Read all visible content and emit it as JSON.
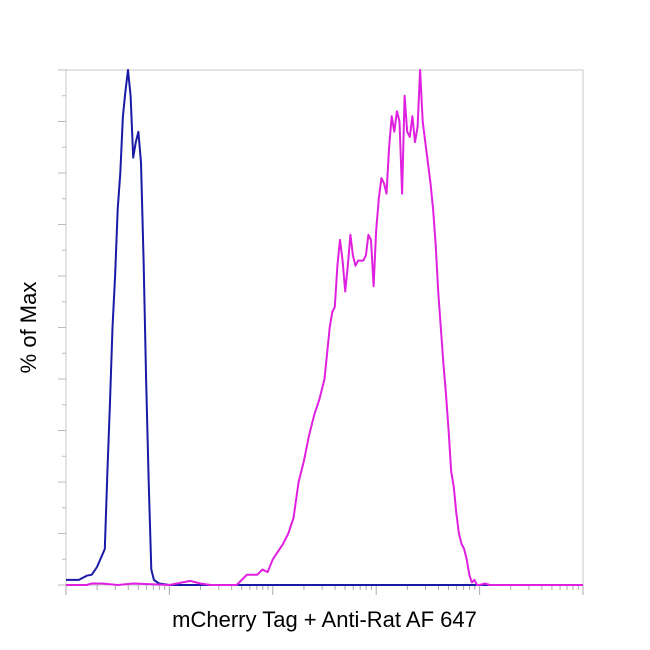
{
  "chart_data": {
    "type": "line",
    "title": "",
    "xlabel": "mCherry Tag + Anti-Rat AF 647",
    "ylabel": "% of Max",
    "x_scale": "log",
    "x_decades": 5,
    "ylim": [
      0,
      100
    ],
    "grid": false,
    "series": [
      {
        "color": "#1a1aa6",
        "points": [
          [
            0.0,
            1
          ],
          [
            0.025,
            1
          ],
          [
            0.04,
            1.8
          ],
          [
            0.05,
            2
          ],
          [
            0.06,
            3.5
          ],
          [
            0.075,
            7
          ],
          [
            0.08,
            22
          ],
          [
            0.085,
            35
          ],
          [
            0.09,
            50
          ],
          [
            0.095,
            60
          ],
          [
            0.1,
            73
          ],
          [
            0.105,
            80
          ],
          [
            0.11,
            91
          ],
          [
            0.115,
            96
          ],
          [
            0.12,
            100
          ],
          [
            0.125,
            95
          ],
          [
            0.13,
            83
          ],
          [
            0.135,
            86
          ],
          [
            0.14,
            88
          ],
          [
            0.145,
            82
          ],
          [
            0.15,
            63
          ],
          [
            0.155,
            40
          ],
          [
            0.16,
            20
          ],
          [
            0.165,
            3
          ],
          [
            0.17,
            1
          ],
          [
            0.18,
            0.3
          ],
          [
            0.2,
            0
          ],
          [
            1.0,
            0
          ]
        ]
      },
      {
        "color": "#e020e0",
        "points": [
          [
            0.0,
            0
          ],
          [
            0.04,
            0
          ],
          [
            0.05,
            0.3
          ],
          [
            0.07,
            0.3
          ],
          [
            0.1,
            0
          ],
          [
            0.13,
            0.3
          ],
          [
            0.2,
            0
          ],
          [
            0.24,
            0.8
          ],
          [
            0.26,
            0.3
          ],
          [
            0.28,
            0
          ],
          [
            0.33,
            0
          ],
          [
            0.34,
            1
          ],
          [
            0.35,
            2
          ],
          [
            0.37,
            2
          ],
          [
            0.38,
            3
          ],
          [
            0.39,
            2.5
          ],
          [
            0.4,
            5
          ],
          [
            0.42,
            8
          ],
          [
            0.43,
            10
          ],
          [
            0.44,
            13
          ],
          [
            0.45,
            20
          ],
          [
            0.46,
            24
          ],
          [
            0.47,
            29
          ],
          [
            0.48,
            33
          ],
          [
            0.49,
            36
          ],
          [
            0.5,
            40
          ],
          [
            0.51,
            50
          ],
          [
            0.515,
            53
          ],
          [
            0.52,
            54
          ],
          [
            0.525,
            62
          ],
          [
            0.53,
            67
          ],
          [
            0.535,
            63
          ],
          [
            0.54,
            57
          ],
          [
            0.545,
            62
          ],
          [
            0.55,
            68
          ],
          [
            0.555,
            64
          ],
          [
            0.56,
            62
          ],
          [
            0.565,
            63
          ],
          [
            0.575,
            63
          ],
          [
            0.58,
            64
          ],
          [
            0.585,
            68
          ],
          [
            0.59,
            67
          ],
          [
            0.595,
            58
          ],
          [
            0.6,
            69
          ],
          [
            0.605,
            75
          ],
          [
            0.61,
            79
          ],
          [
            0.615,
            78
          ],
          [
            0.62,
            76
          ],
          [
            0.625,
            85
          ],
          [
            0.63,
            91
          ],
          [
            0.635,
            88
          ],
          [
            0.64,
            92
          ],
          [
            0.645,
            90
          ],
          [
            0.65,
            76
          ],
          [
            0.655,
            95
          ],
          [
            0.66,
            88
          ],
          [
            0.665,
            87
          ],
          [
            0.67,
            91
          ],
          [
            0.675,
            86
          ],
          [
            0.68,
            89
          ],
          [
            0.685,
            100
          ],
          [
            0.69,
            90
          ],
          [
            0.695,
            86
          ],
          [
            0.7,
            82
          ],
          [
            0.705,
            78
          ],
          [
            0.71,
            73
          ],
          [
            0.715,
            66
          ],
          [
            0.72,
            57
          ],
          [
            0.725,
            50
          ],
          [
            0.73,
            43
          ],
          [
            0.735,
            37
          ],
          [
            0.74,
            30
          ],
          [
            0.745,
            22
          ],
          [
            0.75,
            19
          ],
          [
            0.755,
            14
          ],
          [
            0.76,
            10
          ],
          [
            0.765,
            8
          ],
          [
            0.77,
            7
          ],
          [
            0.775,
            5
          ],
          [
            0.78,
            2
          ],
          [
            0.785,
            0.5
          ],
          [
            0.79,
            1
          ],
          [
            0.795,
            0
          ],
          [
            0.8,
            0
          ],
          [
            0.81,
            0.3
          ],
          [
            0.82,
            0
          ],
          [
            1.0,
            0
          ]
        ]
      }
    ]
  }
}
